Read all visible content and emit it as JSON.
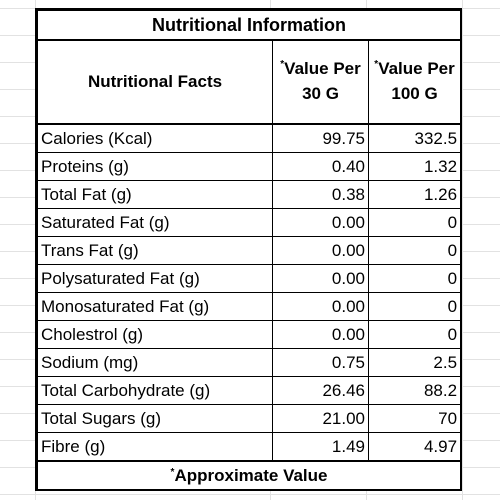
{
  "title": "Nutritional Information",
  "headers": {
    "facts": "Nutritional Facts",
    "per30_marker": "*",
    "per30": "Value Per 30 G",
    "per100_marker": "*",
    "per100": "Value Per 100 G"
  },
  "rows": [
    {
      "label": "Calories (Kcal)",
      "per30": "99.75",
      "per100": "332.5"
    },
    {
      "label": "Proteins (g)",
      "per30": "0.40",
      "per100": "1.32"
    },
    {
      "label": "Total Fat (g)",
      "per30": "0.38",
      "per100": "1.26"
    },
    {
      "label": "Saturated Fat (g)",
      "per30": "0.00",
      "per100": "0"
    },
    {
      "label": "Trans Fat (g)",
      "per30": "0.00",
      "per100": "0"
    },
    {
      "label": "Polysaturated Fat (g)",
      "per30": "0.00",
      "per100": "0"
    },
    {
      "label": "Monosaturated Fat (g)",
      "per30": "0.00",
      "per100": "0"
    },
    {
      "label": "Cholestrol (g)",
      "per30": "0.00",
      "per100": "0"
    },
    {
      "label": "Sodium  (mg)",
      "per30": "0.75",
      "per100": "2.5"
    },
    {
      "label": "Total Carbohydrate (g)",
      "per30": "26.46",
      "per100": "88.2"
    },
    {
      "label": "Total Sugars (g)",
      "per30": "21.00",
      "per100": "70"
    },
    {
      "label": "Fibre (g)",
      "per30": "1.49",
      "per100": "4.97"
    }
  ],
  "footer": {
    "marker": "*",
    "text": "Approximate Value"
  }
}
